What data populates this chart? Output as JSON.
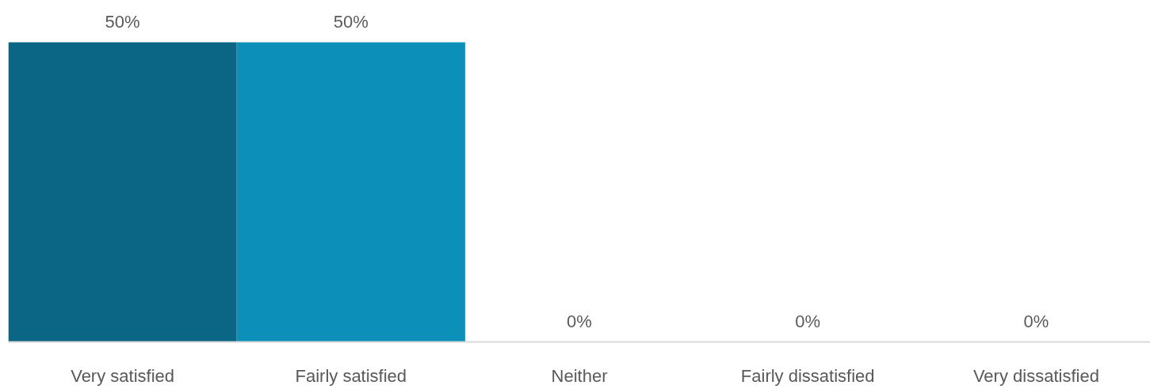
{
  "chart_data": {
    "type": "bar",
    "categories": [
      "Very satisfied",
      "Fairly satisfied",
      "Neither",
      "Fairly dissatisfied",
      "Very dissatisfied"
    ],
    "values": [
      50,
      50,
      0,
      0,
      0
    ],
    "colors": [
      "#0b6685",
      "#0c90b9",
      "#0c90b9",
      "#0c90b9",
      "#0c90b9"
    ],
    "value_labels": [
      "50%",
      "50%",
      "0%",
      "0%",
      "0%"
    ],
    "grid": false
  }
}
